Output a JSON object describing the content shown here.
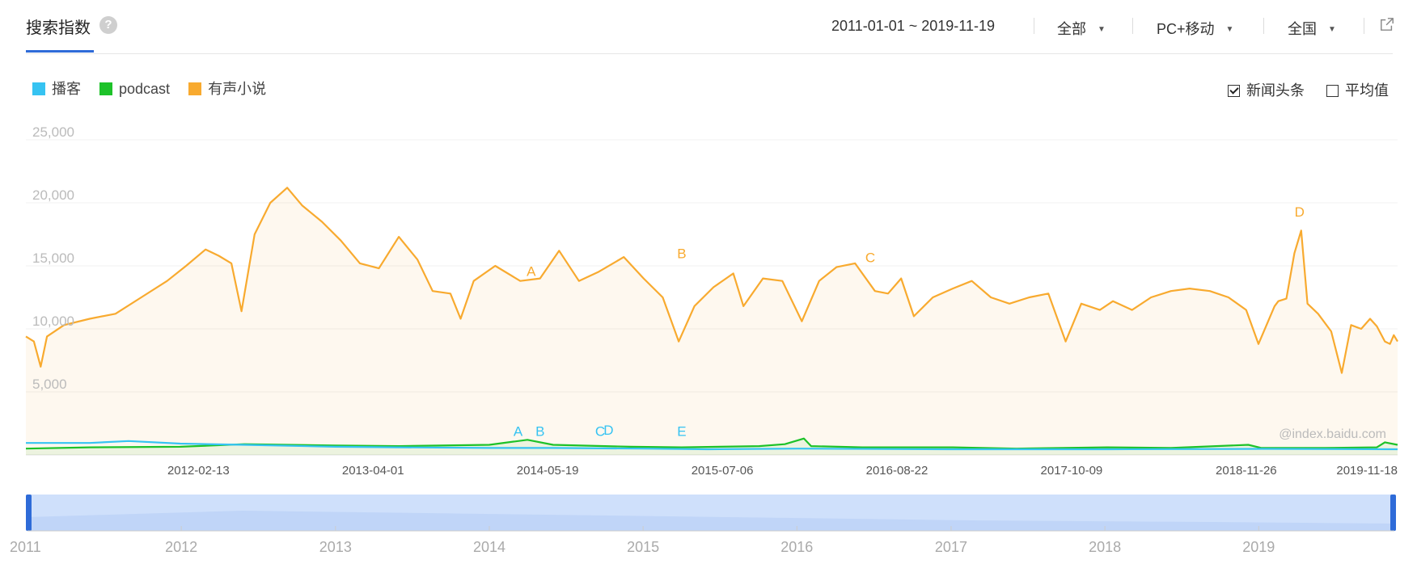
{
  "header": {
    "title": "搜索指数",
    "help_glyph": "?",
    "date_range": "2011-01-01 ~ 2019-11-19",
    "source": "全部",
    "device": "PC+移动",
    "region": "全国"
  },
  "legend": [
    {
      "name": "播客",
      "color": "#36c3f2"
    },
    {
      "name": "podcast",
      "color": "#1dc229"
    },
    {
      "name": "有声小说",
      "color": "#f8aa2f"
    }
  ],
  "toggles": [
    {
      "label": "新闻头条",
      "checked": true
    },
    {
      "label": "平均值",
      "checked": false
    }
  ],
  "watermark": "@index.baidu.com",
  "chart_data": {
    "type": "line",
    "ylim": [
      0,
      25000
    ],
    "y_ticks": [
      "25,000",
      "20,000",
      "15,000",
      "10,000",
      "5,000"
    ],
    "x_ticks": [
      "2012-02-13",
      "2013-04-01",
      "2014-05-19",
      "2015-07-06",
      "2016-08-22",
      "2017-10-09",
      "2018-11-26",
      "2019-11-18"
    ],
    "x_range": [
      "2011-01-01",
      "2019-11-19"
    ],
    "series": [
      {
        "name": "有声小说",
        "color": "#f8aa2f",
        "area": true,
        "points": [
          [
            "2011-01-01",
            9400
          ],
          [
            "2011-01-20",
            9000
          ],
          [
            "2011-02-05",
            7000
          ],
          [
            "2011-02-20",
            9400
          ],
          [
            "2011-04-01",
            10300
          ],
          [
            "2011-06-01",
            10800
          ],
          [
            "2011-08-01",
            11200
          ],
          [
            "2011-10-01",
            12500
          ],
          [
            "2011-12-01",
            13800
          ],
          [
            "2012-01-15",
            15000
          ],
          [
            "2012-03-01",
            16300
          ],
          [
            "2012-04-01",
            15800
          ],
          [
            "2012-05-01",
            15200
          ],
          [
            "2012-05-25",
            11400
          ],
          [
            "2012-06-25",
            17500
          ],
          [
            "2012-08-01",
            20000
          ],
          [
            "2012-09-10",
            21200
          ],
          [
            "2012-10-15",
            19800
          ],
          [
            "2012-12-01",
            18500
          ],
          [
            "2013-01-15",
            17000
          ],
          [
            "2013-03-01",
            15200
          ],
          [
            "2013-04-15",
            14800
          ],
          [
            "2013-06-01",
            17300
          ],
          [
            "2013-07-15",
            15500
          ],
          [
            "2013-08-20",
            13000
          ],
          [
            "2013-10-01",
            12800
          ],
          [
            "2013-10-25",
            10800
          ],
          [
            "2013-11-25",
            13800
          ],
          [
            "2014-01-15",
            15000
          ],
          [
            "2014-03-15",
            13800
          ],
          [
            "2014-05-01",
            14000
          ],
          [
            "2014-06-15",
            16200
          ],
          [
            "2014-08-01",
            13800
          ],
          [
            "2014-09-15",
            14500
          ],
          [
            "2014-11-15",
            15700
          ],
          [
            "2015-01-01",
            14000
          ],
          [
            "2015-02-15",
            12500
          ],
          [
            "2015-03-25",
            9000
          ],
          [
            "2015-05-01",
            11800
          ],
          [
            "2015-06-15",
            13300
          ],
          [
            "2015-08-01",
            14400
          ],
          [
            "2015-08-25",
            11800
          ],
          [
            "2015-10-10",
            14000
          ],
          [
            "2015-11-25",
            13800
          ],
          [
            "2016-01-10",
            10600
          ],
          [
            "2016-02-20",
            13800
          ],
          [
            "2016-04-01",
            14900
          ],
          [
            "2016-05-15",
            15200
          ],
          [
            "2016-07-01",
            13000
          ],
          [
            "2016-08-01",
            12800
          ],
          [
            "2016-09-01",
            14000
          ],
          [
            "2016-10-01",
            11000
          ],
          [
            "2016-11-15",
            12500
          ],
          [
            "2017-01-01",
            13200
          ],
          [
            "2017-02-15",
            13800
          ],
          [
            "2017-04-01",
            12500
          ],
          [
            "2017-05-15",
            12000
          ],
          [
            "2017-07-01",
            12500
          ],
          [
            "2017-08-15",
            12800
          ],
          [
            "2017-09-25",
            9000
          ],
          [
            "2017-11-01",
            12000
          ],
          [
            "2017-12-15",
            11500
          ],
          [
            "2018-01-15",
            12200
          ],
          [
            "2018-03-01",
            11500
          ],
          [
            "2018-04-15",
            12500
          ],
          [
            "2018-06-01",
            13000
          ],
          [
            "2018-07-15",
            13200
          ],
          [
            "2018-09-01",
            13000
          ],
          [
            "2018-10-15",
            12500
          ],
          [
            "2018-11-26",
            11500
          ],
          [
            "2018-12-25",
            8800
          ],
          [
            "2019-02-01",
            11800
          ],
          [
            "2019-02-10",
            12200
          ],
          [
            "2019-03-01",
            12400
          ],
          [
            "2019-03-20",
            16000
          ],
          [
            "2019-04-05",
            17800
          ],
          [
            "2019-04-20",
            12000
          ],
          [
            "2019-05-15",
            11200
          ],
          [
            "2019-06-15",
            9800
          ],
          [
            "2019-07-10",
            6500
          ],
          [
            "2019-08-01",
            10300
          ],
          [
            "2019-08-25",
            10000
          ],
          [
            "2019-09-15",
            10800
          ],
          [
            "2019-10-01",
            10200
          ],
          [
            "2019-10-20",
            9000
          ],
          [
            "2019-11-01",
            8800
          ],
          [
            "2019-11-10",
            9500
          ],
          [
            "2019-11-19",
            9000
          ]
        ]
      },
      {
        "name": "podcast",
        "color": "#1dc229",
        "area": true,
        "points": [
          [
            "2011-01-01",
            500
          ],
          [
            "2011-06-01",
            600
          ],
          [
            "2012-01-01",
            650
          ],
          [
            "2012-06-01",
            850
          ],
          [
            "2013-01-01",
            750
          ],
          [
            "2013-06-01",
            700
          ],
          [
            "2014-01-01",
            800
          ],
          [
            "2014-04-01",
            1200
          ],
          [
            "2014-06-01",
            800
          ],
          [
            "2014-12-01",
            650
          ],
          [
            "2015-04-01",
            600
          ],
          [
            "2015-10-01",
            700
          ],
          [
            "2015-12-01",
            850
          ],
          [
            "2016-01-15",
            1300
          ],
          [
            "2016-02-01",
            700
          ],
          [
            "2016-06-01",
            600
          ],
          [
            "2017-01-01",
            600
          ],
          [
            "2017-06-01",
            500
          ],
          [
            "2018-01-01",
            600
          ],
          [
            "2018-06-01",
            550
          ],
          [
            "2018-12-01",
            800
          ],
          [
            "2019-01-01",
            550
          ],
          [
            "2019-06-01",
            550
          ],
          [
            "2019-10-01",
            600
          ],
          [
            "2019-10-20",
            1000
          ],
          [
            "2019-11-19",
            800
          ]
        ]
      },
      {
        "name": "播客",
        "color": "#36c3f2",
        "area": false,
        "points": [
          [
            "2011-01-01",
            950
          ],
          [
            "2011-06-01",
            950
          ],
          [
            "2011-09-01",
            1100
          ],
          [
            "2012-01-01",
            900
          ],
          [
            "2012-06-01",
            800
          ],
          [
            "2013-01-01",
            650
          ],
          [
            "2013-06-01",
            600
          ],
          [
            "2014-01-01",
            550
          ],
          [
            "2014-06-01",
            550
          ],
          [
            "2015-01-01",
            500
          ],
          [
            "2015-06-01",
            450
          ],
          [
            "2016-01-01",
            500
          ],
          [
            "2017-01-01",
            450
          ],
          [
            "2018-01-01",
            450
          ],
          [
            "2019-01-01",
            480
          ],
          [
            "2019-11-19",
            450
          ]
        ]
      }
    ],
    "annotations": [
      {
        "label": "A",
        "date": "2014-04-10",
        "value": 14200,
        "color": "#f8aa2f"
      },
      {
        "label": "B",
        "date": "2015-04-01",
        "value": 15600,
        "color": "#f8aa2f"
      },
      {
        "label": "C",
        "date": "2016-06-20",
        "value": 15300,
        "color": "#f8aa2f"
      },
      {
        "label": "D",
        "date": "2019-04-01",
        "value": 18900,
        "color": "#f8aa2f"
      },
      {
        "label": "A",
        "date": "2014-03-10",
        "value": 1500,
        "color": "#36c3f2"
      },
      {
        "label": "B",
        "date": "2014-05-01",
        "value": 1500,
        "color": "#36c3f2"
      },
      {
        "label": "C",
        "date": "2014-09-20",
        "value": 1500,
        "color": "#36c3f2"
      },
      {
        "label": "D",
        "date": "2014-10-10",
        "value": 1600,
        "color": "#36c3f2"
      },
      {
        "label": "E",
        "date": "2015-04-01",
        "value": 1500,
        "color": "#36c3f2"
      }
    ],
    "grid": true,
    "legend_position": "top-left"
  },
  "brush": {
    "year_labels": [
      "2011",
      "2012",
      "2013",
      "2014",
      "2015",
      "2016",
      "2017",
      "2018",
      "2019"
    ]
  }
}
